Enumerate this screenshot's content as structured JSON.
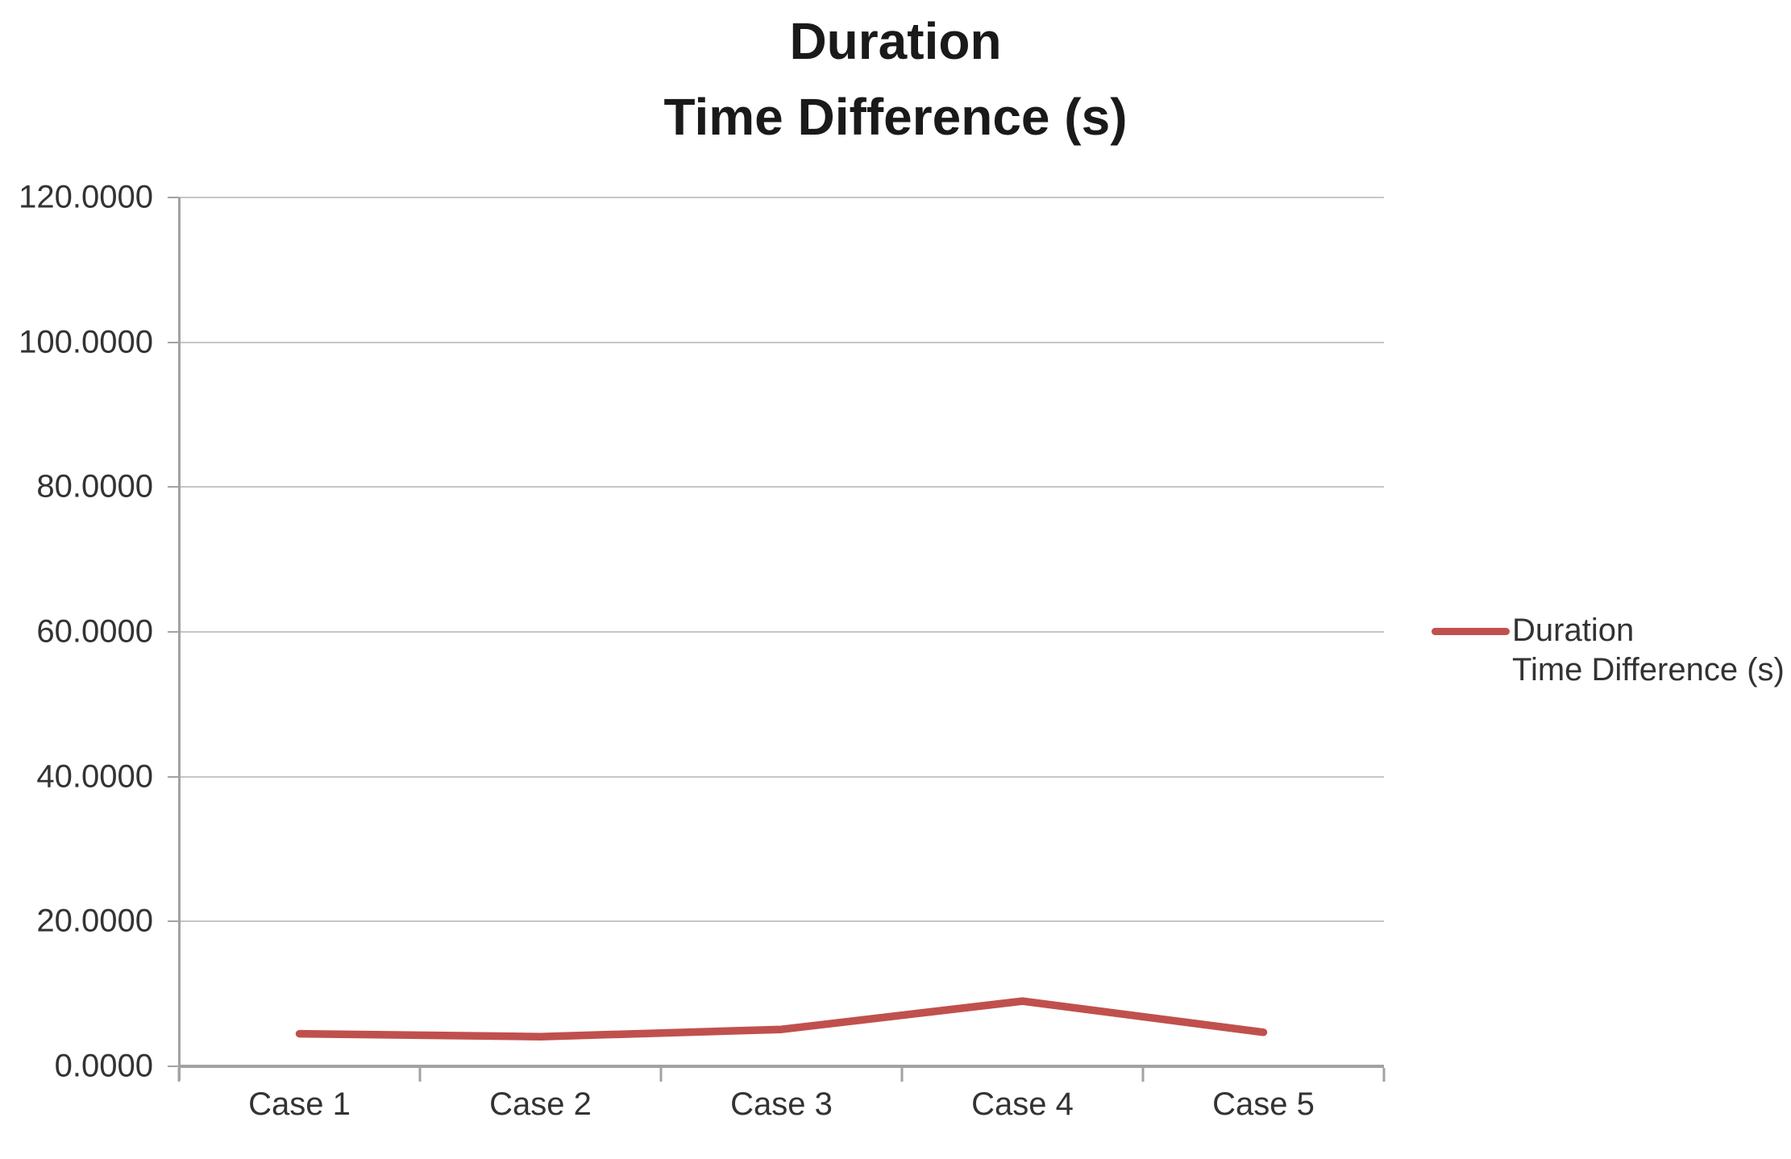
{
  "title": {
    "line1": "Duration",
    "line2": "Time Difference (s)"
  },
  "legend": {
    "label_line1": "Duration",
    "label_line2": "Time Difference (s)"
  },
  "colors": {
    "series": "#c0504d",
    "gridline": "#c6c6c6",
    "axis": "#a2a2a2",
    "title_text": "#1a1a1a",
    "label_text": "#333333"
  },
  "chart_data": {
    "type": "line",
    "title": "Duration Time Difference (s)",
    "categories": [
      "Case 1",
      "Case 2",
      "Case 3",
      "Case 4",
      "Case 5"
    ],
    "series": [
      {
        "name": "Duration Time Difference (s)",
        "values": [
          4.5,
          4.1,
          5.1,
          9.0,
          4.7
        ],
        "color": "#c0504d"
      }
    ],
    "xlabel": "",
    "ylabel": "",
    "ylim": [
      0,
      120
    ],
    "yticks": [
      120,
      100,
      80,
      60,
      40,
      20,
      0
    ],
    "ytick_labels": [
      "120.0000",
      "100.0000",
      "80.0000",
      "60.0000",
      "40.0000",
      "20.0000",
      "0.0000"
    ],
    "grid": true,
    "legend_position": "right"
  }
}
